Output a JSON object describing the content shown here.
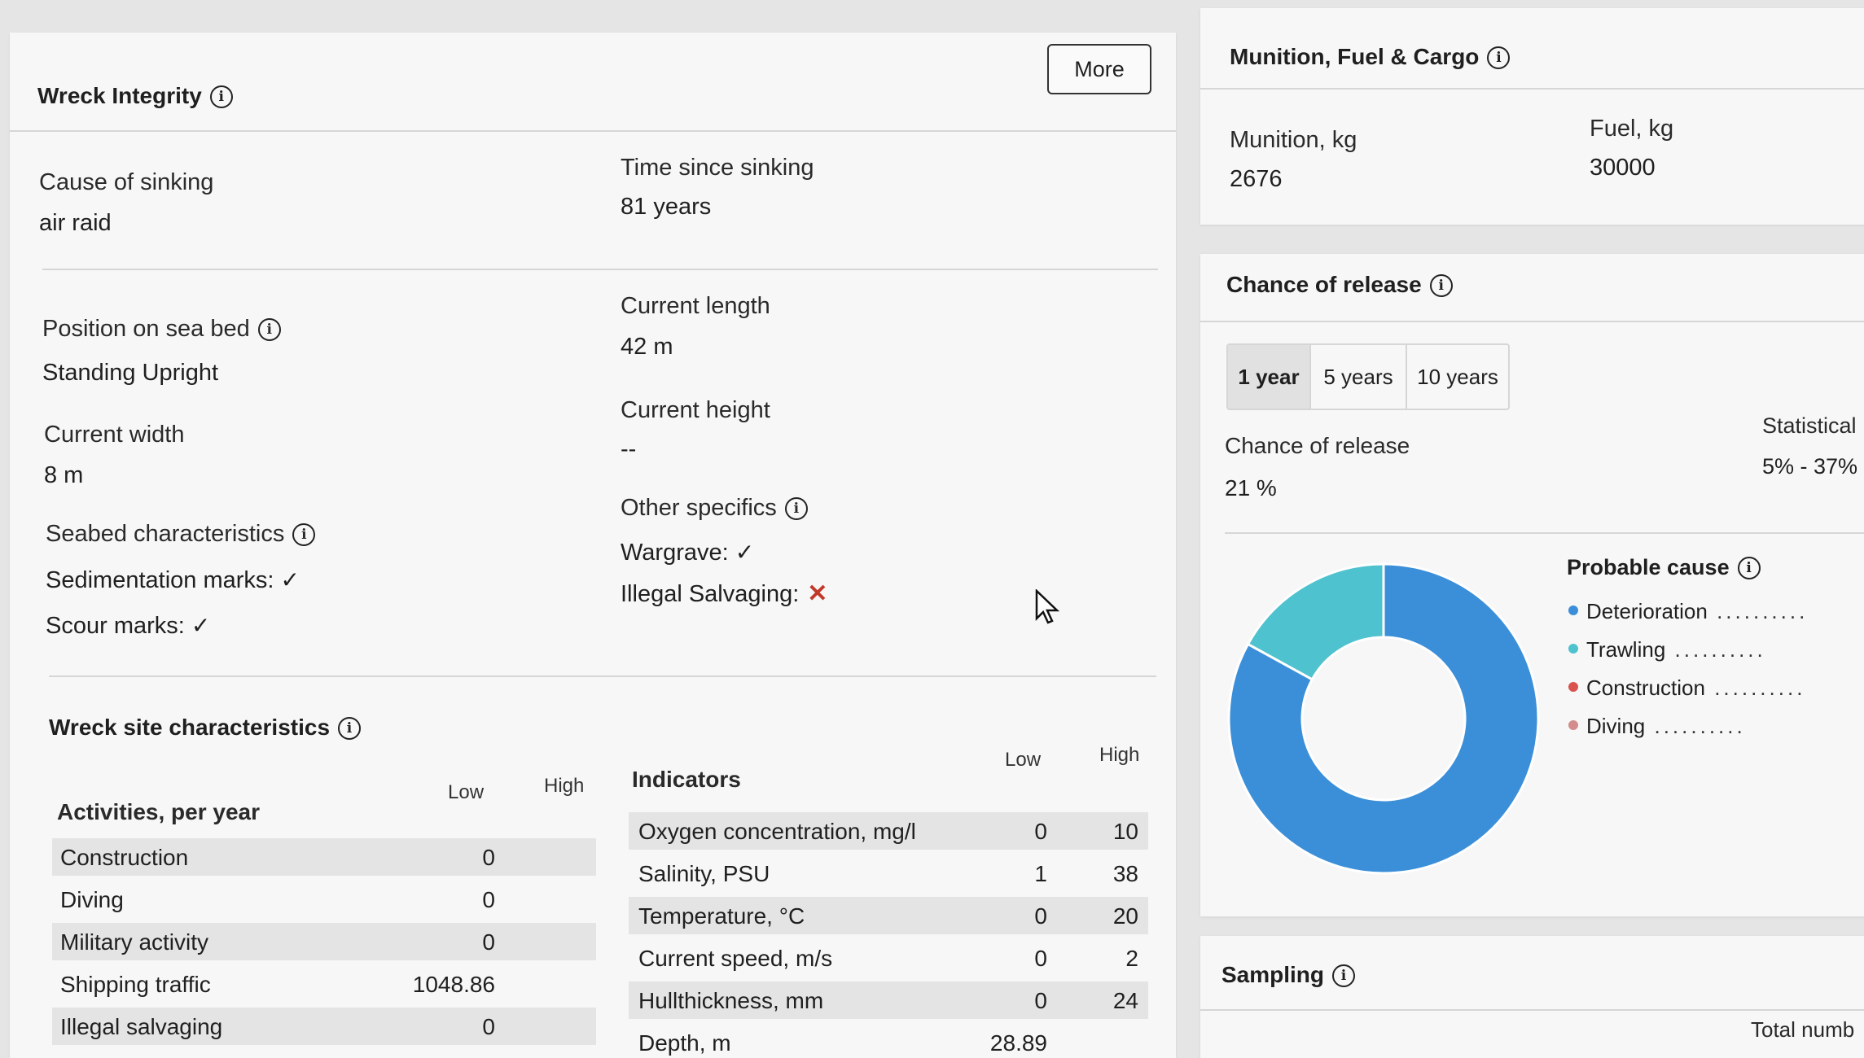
{
  "wreck_integrity": {
    "title": "Wreck Integrity",
    "more_label": "More",
    "cause_label": "Cause of sinking",
    "cause_value": "air raid",
    "time_label": "Time since sinking",
    "time_value": "81 years",
    "position_label": "Position on sea bed",
    "position_value": "Standing Upright",
    "length_label": "Current length",
    "length_value": "42 m",
    "width_label": "Current width",
    "width_value": "8 m",
    "height_label": "Current height",
    "height_value": "--",
    "seabed_label": "Seabed characteristics",
    "sedimentation_label": "Sedimentation marks:",
    "scour_label": "Scour marks:",
    "other_label": "Other specifics",
    "wargrave_label": "Wargrave:",
    "salvaging_label": "Illegal Salvaging:"
  },
  "site": {
    "title": "Wreck site characteristics",
    "activities": {
      "header": "Activities, per year",
      "low": "Low",
      "high": "High",
      "rows": [
        {
          "name": "Construction",
          "low": "0",
          "high": ""
        },
        {
          "name": "Diving",
          "low": "0",
          "high": ""
        },
        {
          "name": "Military activity",
          "low": "0",
          "high": ""
        },
        {
          "name": "Shipping traffic",
          "low": "1048.86",
          "high": ""
        },
        {
          "name": "Illegal salvaging",
          "low": "0",
          "high": ""
        }
      ]
    },
    "indicators": {
      "header": "Indicators",
      "low": "Low",
      "high": "High",
      "rows": [
        {
          "name": "Oxygen concentration, mg/l",
          "low": "0",
          "high": "10"
        },
        {
          "name": "Salinity, PSU",
          "low": "1",
          "high": "38"
        },
        {
          "name": "Temperature, °C",
          "low": "0",
          "high": "20"
        },
        {
          "name": "Current speed, m/s",
          "low": "0",
          "high": "2"
        },
        {
          "name": "Hullthickness, mm",
          "low": "0",
          "high": "24"
        },
        {
          "name": "Depth, m",
          "low": "28.89",
          "high": ""
        }
      ]
    }
  },
  "munition": {
    "title": "Munition, Fuel & Cargo",
    "munition_label": "Munition, kg",
    "munition_value": "2676",
    "fuel_label": "Fuel, kg",
    "fuel_value": "30000"
  },
  "release": {
    "title": "Chance of release",
    "tabs": [
      "1 year",
      "5 years",
      "10 years"
    ],
    "active_tab": "1 year",
    "chance_label": "Chance of release",
    "chance_value": "21 %",
    "statistical_label": "Statistical",
    "statistical_value": "5% - 37%",
    "probable_cause_title": "Probable cause",
    "legend": [
      {
        "name": "Deterioration",
        "color": "#3b8fd9"
      },
      {
        "name": "Trawling",
        "color": "#4ec3cf"
      },
      {
        "name": "Construction",
        "color": "#d9534f"
      },
      {
        "name": "Diving",
        "color": "#d48c8c"
      }
    ],
    "donut": [
      {
        "name": "Deterioration",
        "value": 83,
        "color": "#3b8fd9"
      },
      {
        "name": "Trawling",
        "value": 17,
        "color": "#4ec3cf"
      }
    ]
  },
  "sampling": {
    "title": "Sampling",
    "total_label": "Total numb"
  }
}
